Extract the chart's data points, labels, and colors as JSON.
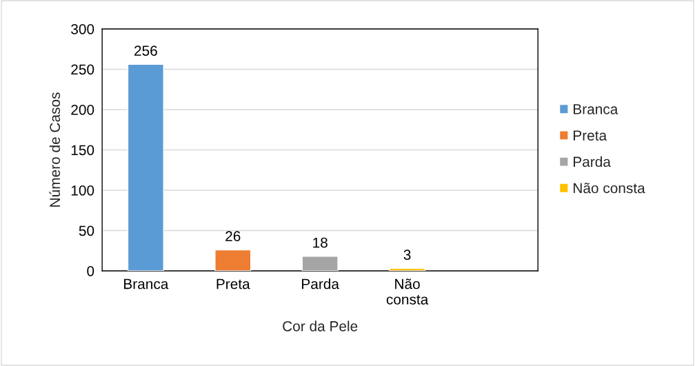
{
  "chart_data": {
    "type": "bar",
    "xlabel": "Cor da Pele",
    "ylabel": "Número de Casos",
    "categories": [
      "Branca",
      "Preta",
      "Parda",
      "Não consta",
      null
    ],
    "series": [
      {
        "name": "Branca",
        "color": "#5b9bd5",
        "values": [
          256,
          null,
          null,
          null,
          null
        ]
      },
      {
        "name": "Preta",
        "color": "#ed7d31",
        "values": [
          null,
          26,
          null,
          null,
          null
        ]
      },
      {
        "name": "Parda",
        "color": "#a5a5a5",
        "values": [
          null,
          null,
          18,
          null,
          null
        ]
      },
      {
        "name": "Não consta",
        "color": "#ffc000",
        "values": [
          null,
          null,
          null,
          3,
          null
        ]
      }
    ],
    "ylim": [
      0,
      300
    ],
    "yticks": [
      0,
      50,
      100,
      150,
      200,
      250,
      300
    ],
    "grid": "y",
    "data_labels": true,
    "legend": "right"
  }
}
